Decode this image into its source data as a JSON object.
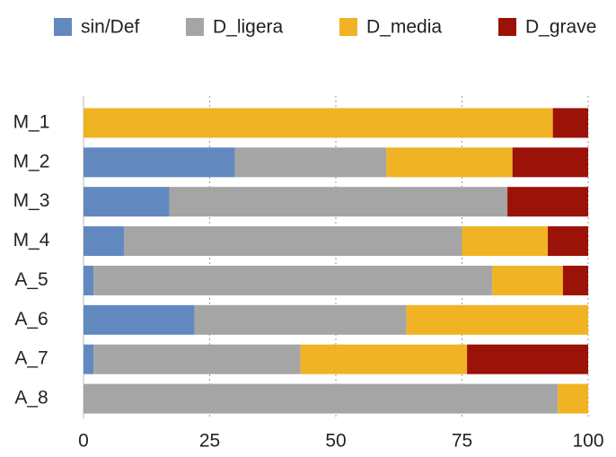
{
  "chart_data": {
    "type": "stacked_barh",
    "categories": [
      "M_1",
      "M_2",
      "M_3",
      "M_4",
      "A_5",
      "A_6",
      "A_7",
      "A_8"
    ],
    "series": [
      {
        "name": "sin/Def",
        "color": "#6189c0",
        "values": [
          0,
          30,
          17,
          8,
          2,
          22,
          2,
          0
        ]
      },
      {
        "name": "D_ligera",
        "color": "#a5a5a5",
        "values": [
          0,
          30,
          67,
          67,
          79,
          42,
          41,
          94
        ]
      },
      {
        "name": "D_media",
        "color": "#f0b323",
        "values": [
          93,
          25,
          0,
          17,
          14,
          36,
          33,
          6
        ]
      },
      {
        "name": "D_grave",
        "color": "#9b1208",
        "values": [
          7,
          15,
          16,
          8,
          5,
          0,
          24,
          0
        ]
      }
    ],
    "xlim": [
      0,
      100
    ],
    "xticks": [
      0,
      25,
      50,
      75,
      100
    ],
    "grid": true,
    "legend": "top"
  }
}
